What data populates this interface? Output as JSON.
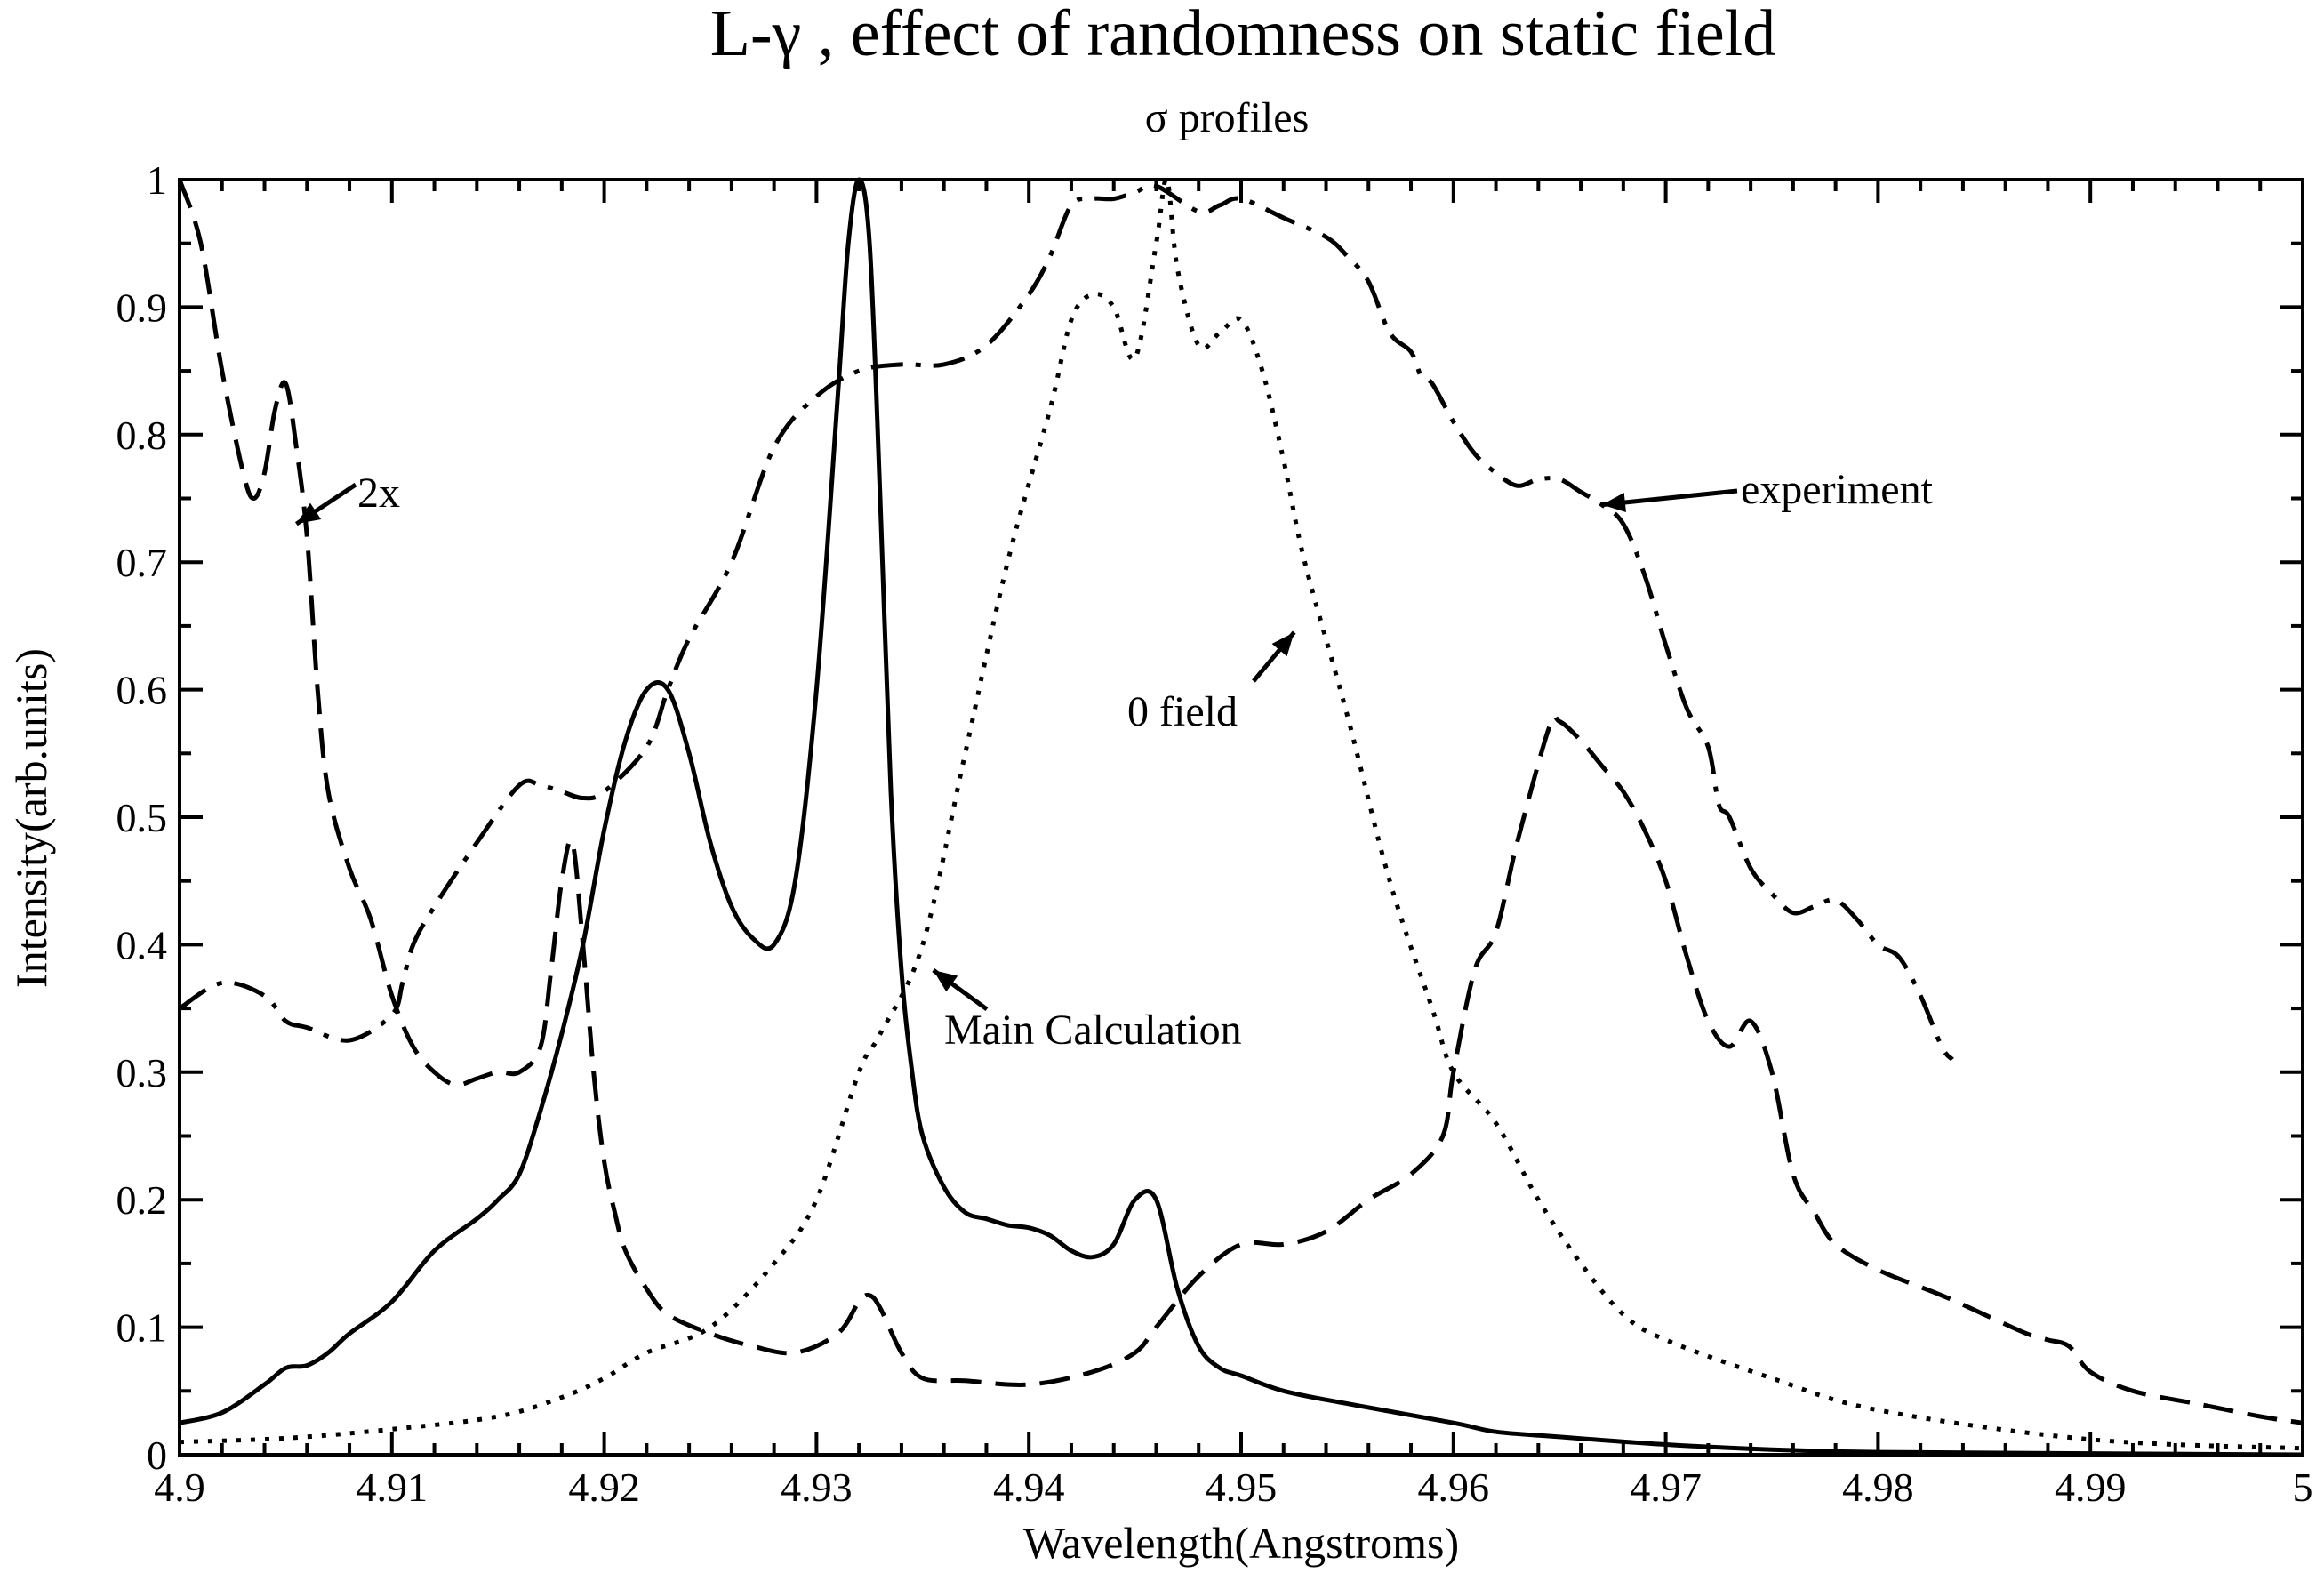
{
  "chart_data": {
    "type": "line",
    "title": "L-γ  , effect of randomness on static field",
    "subtitle": "σ  profiles",
    "xlabel": "Wavelength(Angstroms)",
    "ylabel": "Intensity(arb.units)",
    "xlim": [
      4.9,
      5.0
    ],
    "ylim": [
      0,
      1
    ],
    "grid": false,
    "x_ticks": [
      4.9,
      4.91,
      4.92,
      4.93,
      4.94,
      4.95,
      4.96,
      4.97,
      4.98,
      4.99,
      5.0
    ],
    "x_tick_labels": [
      "4.9",
      "4.91",
      "4.92",
      "4.93",
      "4.94",
      "4.95",
      "4.96",
      "4.97",
      "4.98",
      "4.99",
      "5"
    ],
    "y_ticks": [
      0,
      0.1,
      0.2,
      0.3,
      0.4,
      0.5,
      0.6,
      0.7,
      0.8,
      0.9,
      1.0
    ],
    "y_tick_labels": [
      "0",
      "0.1",
      "0.2",
      "0.3",
      "0.4",
      "0.5",
      "0.6",
      "0.7",
      "0.8",
      "0.9",
      "1"
    ],
    "series": [
      {
        "name": "Main Calculation",
        "style": "solid",
        "x": [
          4.9,
          4.902,
          4.904,
          4.905,
          4.906,
          4.907,
          4.908,
          4.91,
          4.912,
          4.914,
          4.915,
          4.916,
          4.917,
          4.918,
          4.919,
          4.92,
          4.921,
          4.922,
          4.923,
          4.924,
          4.925,
          4.926,
          4.927,
          4.928,
          4.929,
          4.93,
          4.931,
          4.9315,
          4.932,
          4.9325,
          4.933,
          4.9335,
          4.934,
          4.9345,
          4.935,
          4.936,
          4.937,
          4.938,
          4.939,
          4.94,
          4.941,
          4.942,
          4.943,
          4.944,
          4.945,
          4.946,
          4.947,
          4.948,
          4.949,
          4.95,
          4.952,
          4.955,
          4.96,
          4.962,
          4.965,
          4.97,
          4.975,
          4.98,
          4.99,
          5.0
        ],
        "y": [
          0.025,
          0.033,
          0.055,
          0.068,
          0.07,
          0.08,
          0.095,
          0.12,
          0.16,
          0.185,
          0.2,
          0.22,
          0.27,
          0.33,
          0.4,
          0.49,
          0.56,
          0.6,
          0.6,
          0.55,
          0.48,
          0.43,
          0.405,
          0.4,
          0.45,
          0.6,
          0.83,
          0.95,
          1.0,
          0.95,
          0.75,
          0.52,
          0.38,
          0.3,
          0.25,
          0.21,
          0.19,
          0.185,
          0.18,
          0.178,
          0.172,
          0.16,
          0.155,
          0.165,
          0.2,
          0.2,
          0.13,
          0.085,
          0.068,
          0.062,
          0.05,
          0.04,
          0.025,
          0.018,
          0.014,
          0.008,
          0.004,
          0.002,
          0.001,
          0.0
        ]
      },
      {
        "name": "2x",
        "style": "dashed",
        "x": [
          4.9,
          4.901,
          4.902,
          4.903,
          4.9035,
          4.904,
          4.9045,
          4.905,
          4.9055,
          4.906,
          4.9065,
          4.907,
          4.908,
          4.909,
          4.91,
          4.911,
          4.912,
          4.913,
          4.914,
          4.915,
          4.916,
          4.917,
          4.9175,
          4.918,
          4.9185,
          4.919,
          4.9195,
          4.92,
          4.9205,
          4.921,
          4.922,
          4.923,
          4.925,
          4.927,
          4.929,
          4.931,
          4.932,
          4.9325,
          4.933,
          4.934,
          4.935,
          4.937,
          4.94,
          4.943,
          4.945,
          4.946,
          4.948,
          4.95,
          4.952,
          4.954,
          4.956,
          4.958,
          4.9595,
          4.96,
          4.961,
          4.962,
          4.963,
          4.9645,
          4.965,
          4.966,
          4.967,
          4.968,
          4.969,
          4.97,
          4.971,
          4.972,
          4.973,
          4.974,
          4.975,
          4.976,
          4.977,
          4.978,
          4.98,
          4.983,
          4.985,
          4.987,
          4.988,
          4.989,
          4.99,
          4.992,
          4.995,
          4.998,
          5.0
        ],
        "y": [
          1.0,
          0.95,
          0.85,
          0.77,
          0.75,
          0.77,
          0.82,
          0.84,
          0.79,
          0.72,
          0.6,
          0.52,
          0.46,
          0.42,
          0.36,
          0.32,
          0.3,
          0.29,
          0.295,
          0.3,
          0.3,
          0.32,
          0.38,
          0.45,
          0.48,
          0.4,
          0.3,
          0.23,
          0.19,
          0.16,
          0.13,
          0.11,
          0.095,
          0.085,
          0.08,
          0.095,
          0.12,
          0.125,
          0.115,
          0.08,
          0.06,
          0.058,
          0.055,
          0.065,
          0.08,
          0.1,
          0.14,
          0.165,
          0.165,
          0.175,
          0.2,
          0.22,
          0.25,
          0.3,
          0.38,
          0.41,
          0.48,
          0.57,
          0.575,
          0.56,
          0.54,
          0.52,
          0.49,
          0.45,
          0.39,
          0.34,
          0.32,
          0.34,
          0.3,
          0.22,
          0.19,
          0.165,
          0.145,
          0.125,
          0.11,
          0.095,
          0.09,
          0.085,
          0.065,
          0.05,
          0.04,
          0.03,
          0.025
        ]
      },
      {
        "name": "0 field",
        "style": "dotted",
        "x": [
          4.9,
          4.905,
          4.91,
          4.915,
          4.918,
          4.92,
          4.922,
          4.925,
          4.928,
          4.93,
          4.932,
          4.933,
          4.935,
          4.937,
          4.939,
          4.941,
          4.942,
          4.943,
          4.944,
          4.945,
          4.946,
          4.9465,
          4.947,
          4.948,
          4.949,
          4.95,
          4.951,
          4.952,
          4.953,
          4.955,
          4.957,
          4.959,
          4.96,
          4.962,
          4.964,
          4.966,
          4.968,
          4.97,
          4.975,
          4.98,
          4.99,
          5.0
        ],
        "y": [
          0.01,
          0.013,
          0.02,
          0.03,
          0.045,
          0.06,
          0.08,
          0.1,
          0.15,
          0.2,
          0.3,
          0.33,
          0.4,
          0.55,
          0.7,
          0.82,
          0.89,
          0.91,
          0.9,
          0.86,
          0.95,
          1.0,
          0.93,
          0.87,
          0.88,
          0.89,
          0.85,
          0.78,
          0.7,
          0.58,
          0.45,
          0.35,
          0.3,
          0.26,
          0.2,
          0.15,
          0.11,
          0.09,
          0.06,
          0.035,
          0.012,
          0.005
        ]
      },
      {
        "name": "experiment",
        "style": "dash-dot",
        "x": [
          4.9,
          4.902,
          4.904,
          4.905,
          4.906,
          4.908,
          4.91,
          4.9105,
          4.911,
          4.912,
          4.914,
          4.916,
          4.917,
          4.918,
          4.919,
          4.92,
          4.922,
          4.923,
          4.924,
          4.926,
          4.928,
          4.93,
          4.932,
          4.934,
          4.936,
          4.938,
          4.94,
          4.941,
          4.942,
          4.943,
          4.944,
          4.945,
          4.946,
          4.948,
          4.949,
          4.95,
          4.952,
          4.954,
          4.955,
          4.956,
          4.957,
          4.958,
          4.9585,
          4.959,
          4.96,
          4.961,
          4.962,
          4.963,
          4.964,
          4.965,
          4.966,
          4.967,
          4.968,
          4.969,
          4.97,
          4.971,
          4.972,
          4.9725,
          4.973,
          4.974,
          4.975,
          4.976,
          4.977,
          4.978,
          4.979,
          4.98,
          4.981,
          4.982,
          4.983,
          4.9835
        ],
        "y": [
          0.35,
          0.37,
          0.36,
          0.34,
          0.335,
          0.325,
          0.345,
          0.37,
          0.4,
          0.43,
          0.48,
          0.525,
          0.525,
          0.52,
          0.515,
          0.52,
          0.555,
          0.6,
          0.64,
          0.7,
          0.79,
          0.83,
          0.85,
          0.855,
          0.855,
          0.87,
          0.91,
          0.94,
          0.98,
          0.985,
          0.985,
          0.99,
          0.995,
          0.975,
          0.98,
          0.985,
          0.97,
          0.955,
          0.94,
          0.92,
          0.88,
          0.865,
          0.845,
          0.84,
          0.81,
          0.785,
          0.77,
          0.76,
          0.765,
          0.765,
          0.755,
          0.745,
          0.73,
          0.69,
          0.635,
          0.585,
          0.555,
          0.51,
          0.5,
          0.46,
          0.44,
          0.425,
          0.43,
          0.435,
          0.42,
          0.4,
          0.39,
          0.36,
          0.32,
          0.31
        ]
      }
    ],
    "annotations": [
      {
        "text": "2x",
        "series": "2x",
        "target": [
          4.9055,
          0.73
        ]
      },
      {
        "text": "experiment",
        "series": "experiment",
        "target": [
          4.967,
          0.745
        ]
      },
      {
        "text": "0 field",
        "series": "0 field",
        "target": [
          4.9525,
          0.645
        ]
      },
      {
        "text": "Main Calculation",
        "series": "Main Calculation",
        "target": [
          4.9355,
          0.38
        ]
      }
    ]
  }
}
